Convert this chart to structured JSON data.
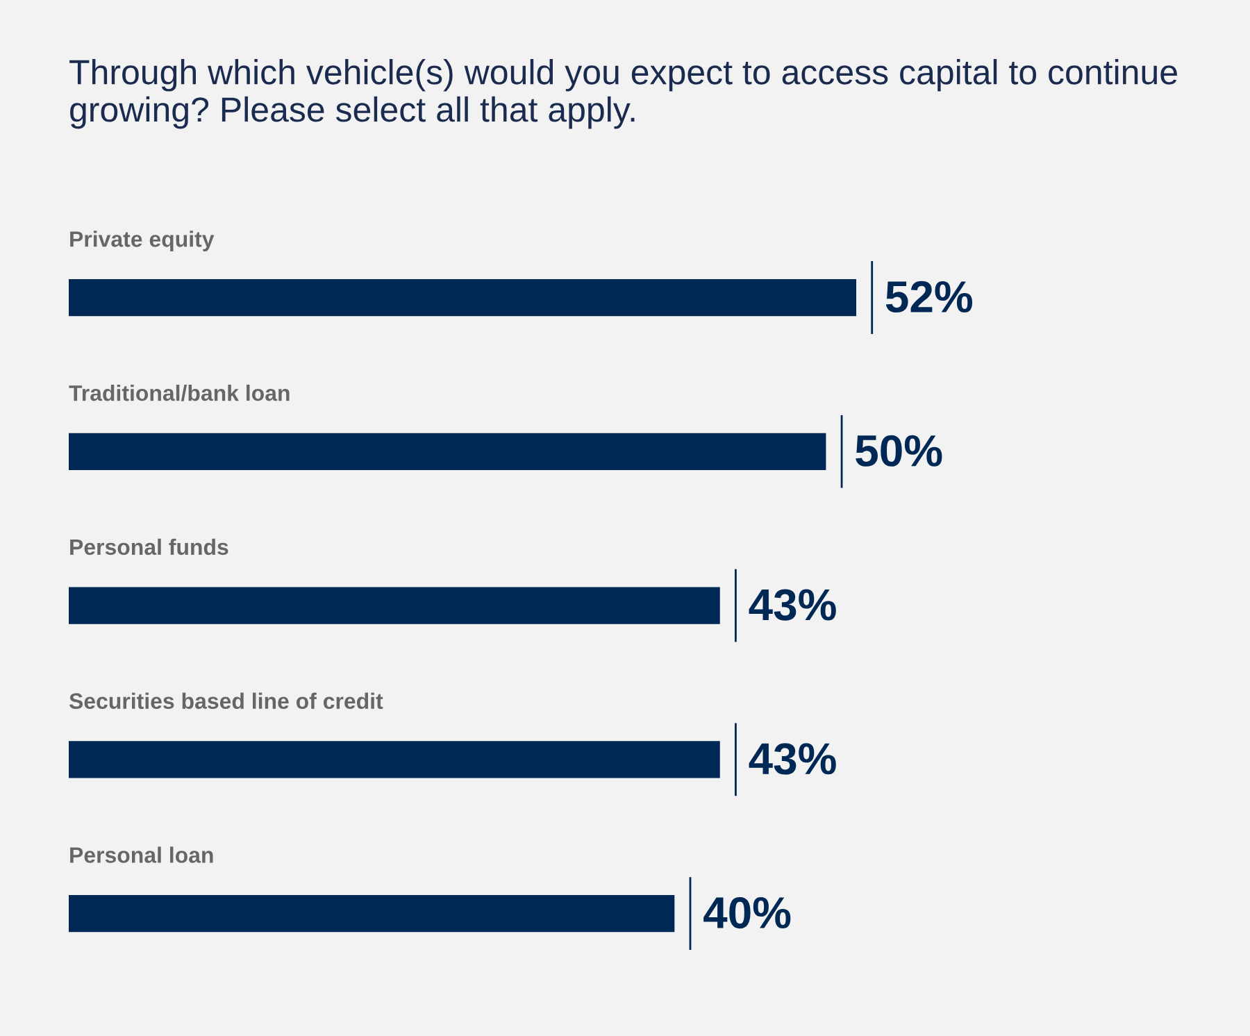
{
  "chart_data": {
    "type": "bar",
    "orientation": "horizontal",
    "title": "Through which vehicle(s) would you expect to access capital to continue growing? Please select all that apply.",
    "categories": [
      "Private equity",
      "Traditional/bank loan",
      "Personal funds",
      "Securities based line of credit",
      "Personal loan"
    ],
    "values": [
      52,
      50,
      43,
      43,
      40
    ],
    "value_labels": [
      "52%",
      "50%",
      "43%",
      "43%",
      "40%"
    ],
    "color": "#002855"
  }
}
